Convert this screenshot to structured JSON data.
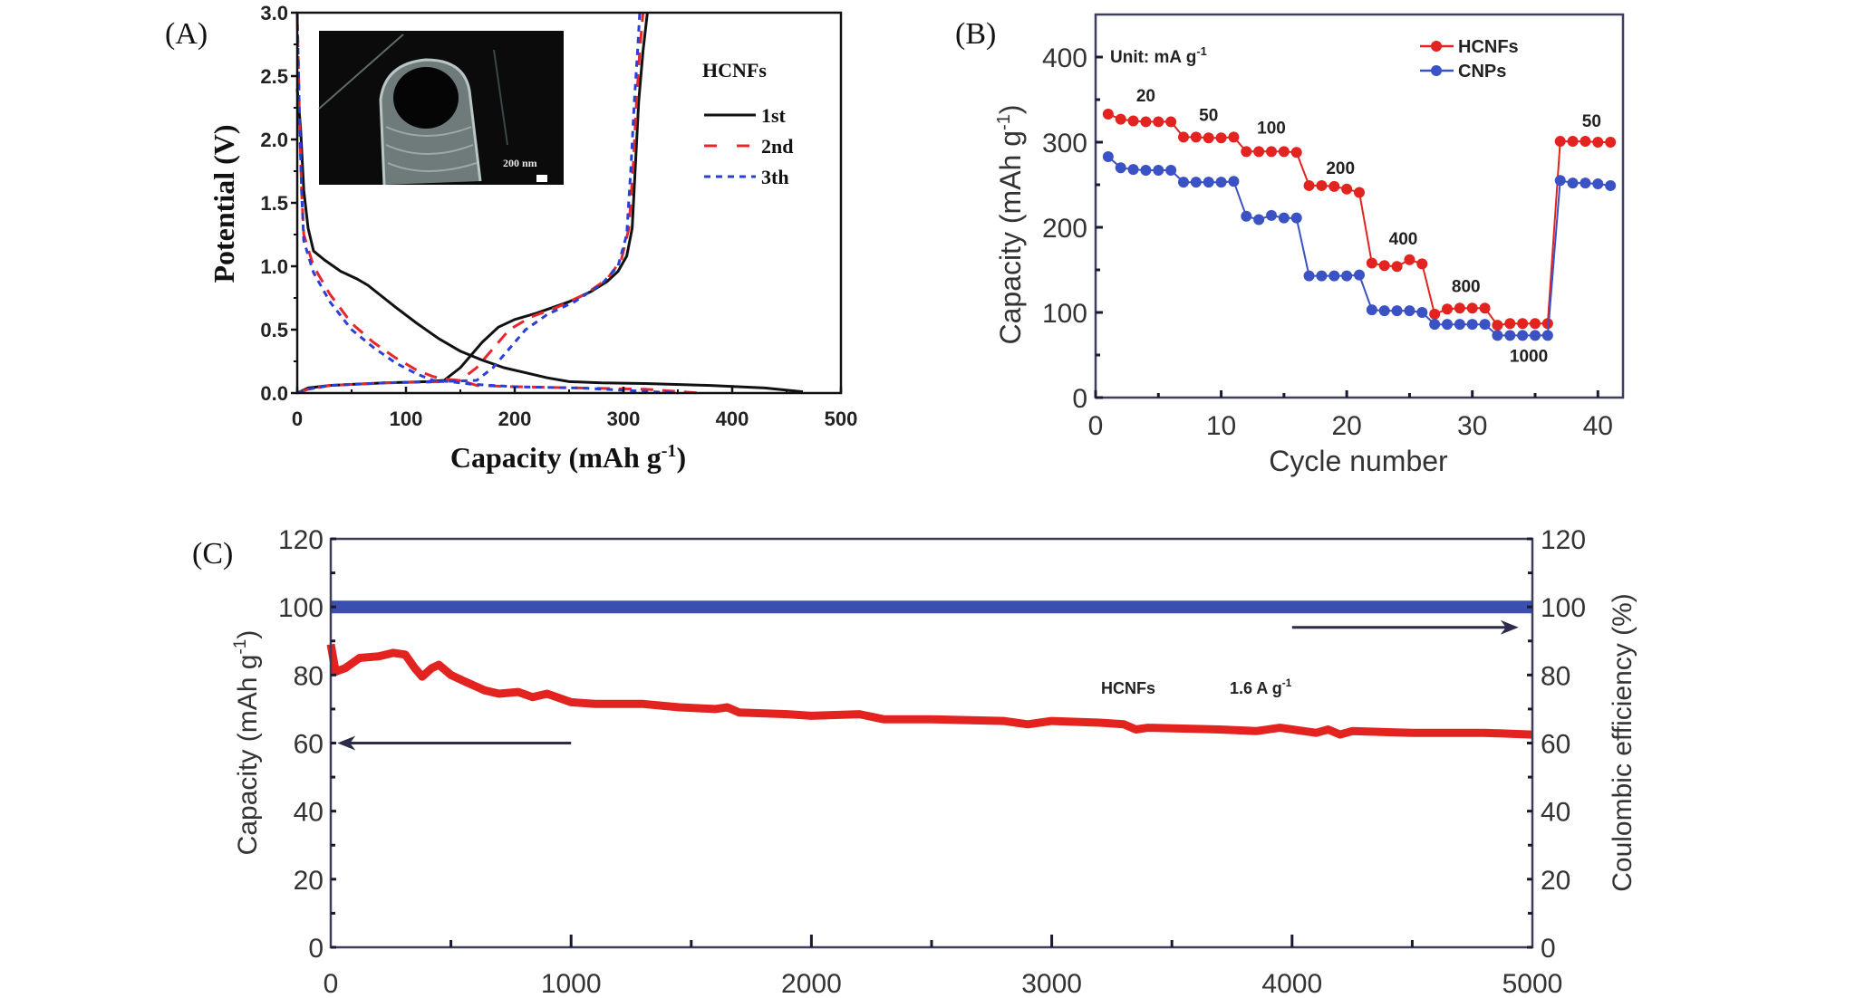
{
  "figure": {
    "panel_labels": [
      "(A)",
      "(B)",
      "(C)"
    ]
  },
  "chart_data": [
    {
      "id": "A",
      "type": "line",
      "title": "",
      "xlabel": "Capacity (mAh g-1)",
      "xlabel_main": "Capacity (mAh g",
      "xlabel_sup": "-1",
      "xlabel_end": ")",
      "ylabel": "Potential (V)",
      "xlim": [
        0,
        500
      ],
      "ylim": [
        0,
        3.0
      ],
      "xticks": [
        0,
        100,
        200,
        300,
        400,
        500
      ],
      "xtick_labels": [
        "0",
        "100",
        "200",
        "300",
        "400",
        "500"
      ],
      "yticks": [
        0,
        0.5,
        1.0,
        1.5,
        2.0,
        2.5,
        3.0
      ],
      "ytick_labels": [
        "0.0",
        "0.5",
        "1.0",
        "1.5",
        "2.0",
        "2.5",
        "3.0"
      ],
      "grid": false,
      "legend_title": "HCNFs",
      "legend_position": "top-right",
      "inset": {
        "description": "SEM image of hollow carbon nanofiber",
        "scale_bar": "200 nm"
      },
      "series": [
        {
          "name": "1st",
          "color": "#111111",
          "style": "solid",
          "discharge": [
            [
              0,
              2.4
            ],
            [
              3,
              2.1
            ],
            [
              6,
              1.6
            ],
            [
              10,
              1.3
            ],
            [
              15,
              1.12
            ],
            [
              25,
              1.05
            ],
            [
              40,
              0.96
            ],
            [
              55,
              0.9
            ],
            [
              65,
              0.85
            ],
            [
              90,
              0.68
            ],
            [
              110,
              0.55
            ],
            [
              130,
              0.43
            ],
            [
              150,
              0.33
            ],
            [
              170,
              0.26
            ],
            [
              190,
              0.2
            ],
            [
              210,
              0.16
            ],
            [
              230,
              0.12
            ],
            [
              250,
              0.09
            ],
            [
              280,
              0.08
            ],
            [
              320,
              0.075
            ],
            [
              380,
              0.06
            ],
            [
              430,
              0.04
            ],
            [
              465,
              0.01
            ]
          ],
          "charge": [
            [
              0,
              0.0
            ],
            [
              10,
              0.04
            ],
            [
              30,
              0.06
            ],
            [
              80,
              0.08
            ],
            [
              120,
              0.09
            ],
            [
              135,
              0.1
            ],
            [
              150,
              0.2
            ],
            [
              170,
              0.4
            ],
            [
              185,
              0.52
            ],
            [
              200,
              0.58
            ],
            [
              220,
              0.63
            ],
            [
              250,
              0.72
            ],
            [
              270,
              0.8
            ],
            [
              285,
              0.88
            ],
            [
              295,
              0.96
            ],
            [
              303,
              1.08
            ],
            [
              308,
              1.3
            ],
            [
              311,
              1.8
            ],
            [
              314,
              2.3
            ],
            [
              318,
              2.7
            ],
            [
              322,
              3.0
            ]
          ]
        },
        {
          "name": "2nd",
          "color": "#e8262c",
          "style": "dashed",
          "discharge": [
            [
              0,
              3.0
            ],
            [
              2,
              2.2
            ],
            [
              4,
              1.6
            ],
            [
              6,
              1.25
            ],
            [
              15,
              1.0
            ],
            [
              30,
              0.78
            ],
            [
              50,
              0.55
            ],
            [
              70,
              0.4
            ],
            [
              90,
              0.28
            ],
            [
              110,
              0.18
            ],
            [
              125,
              0.13
            ],
            [
              135,
              0.11
            ],
            [
              150,
              0.1
            ],
            [
              165,
              0.06
            ],
            [
              200,
              0.05
            ],
            [
              260,
              0.04
            ],
            [
              320,
              0.03
            ],
            [
              370,
              0.0
            ]
          ],
          "charge": [
            [
              0,
              0.0
            ],
            [
              10,
              0.03
            ],
            [
              30,
              0.06
            ],
            [
              80,
              0.08
            ],
            [
              130,
              0.09
            ],
            [
              150,
              0.1
            ],
            [
              165,
              0.2
            ],
            [
              180,
              0.35
            ],
            [
              195,
              0.5
            ],
            [
              215,
              0.6
            ],
            [
              240,
              0.68
            ],
            [
              265,
              0.78
            ],
            [
              285,
              0.9
            ],
            [
              298,
              1.05
            ],
            [
              305,
              1.3
            ],
            [
              309,
              1.8
            ],
            [
              312,
              2.3
            ],
            [
              315,
              2.7
            ],
            [
              318,
              3.0
            ]
          ]
        },
        {
          "name": "3th",
          "color": "#2a3fd6",
          "style": "dotted",
          "discharge": [
            [
              0,
              3.0
            ],
            [
              2,
              2.2
            ],
            [
              4,
              1.6
            ],
            [
              6,
              1.2
            ],
            [
              15,
              0.95
            ],
            [
              30,
              0.72
            ],
            [
              50,
              0.5
            ],
            [
              70,
              0.36
            ],
            [
              90,
              0.24
            ],
            [
              110,
              0.15
            ],
            [
              125,
              0.1
            ],
            [
              140,
              0.09
            ],
            [
              160,
              0.07
            ],
            [
              200,
              0.05
            ],
            [
              260,
              0.04
            ],
            [
              350,
              0.0
            ]
          ],
          "charge": [
            [
              0,
              0.0
            ],
            [
              10,
              0.03
            ],
            [
              30,
              0.06
            ],
            [
              80,
              0.08
            ],
            [
              130,
              0.09
            ],
            [
              165,
              0.1
            ],
            [
              180,
              0.2
            ],
            [
              195,
              0.35
            ],
            [
              210,
              0.5
            ],
            [
              230,
              0.62
            ],
            [
              255,
              0.72
            ],
            [
              280,
              0.86
            ],
            [
              295,
              1.0
            ],
            [
              303,
              1.25
            ],
            [
              307,
              1.8
            ],
            [
              310,
              2.3
            ],
            [
              313,
              2.7
            ],
            [
              315,
              3.0
            ]
          ]
        }
      ]
    },
    {
      "id": "B",
      "type": "line",
      "title": "",
      "xlabel": "Cycle number",
      "ylabel": "Capacity (mAh g-1)",
      "ylabel_main": "Capacity (mAh g",
      "ylabel_sup": "-1",
      "ylabel_end": ")",
      "xlim": [
        0,
        42
      ],
      "ylim": [
        0,
        450
      ],
      "xticks": [
        0,
        10,
        20,
        30,
        40
      ],
      "xtick_labels": [
        "0",
        "10",
        "20",
        "30",
        "40"
      ],
      "yticks": [
        0,
        100,
        200,
        300,
        400
      ],
      "ytick_labels": [
        "0",
        "100",
        "200",
        "300",
        "400"
      ],
      "grid": false,
      "legend_position": "top-right",
      "unit_note": "Unit: mA g",
      "unit_note_sup": "-1",
      "rate_annotations": [
        {
          "text": "20",
          "x": 4,
          "y": 348
        },
        {
          "text": "50",
          "x": 9,
          "y": 325
        },
        {
          "text": "100",
          "x": 14,
          "y": 310
        },
        {
          "text": "200",
          "x": 19.5,
          "y": 263
        },
        {
          "text": "400",
          "x": 24.5,
          "y": 180
        },
        {
          "text": "800",
          "x": 29.5,
          "y": 124
        },
        {
          "text": "1000",
          "x": 34.5,
          "y": 42
        },
        {
          "text": "50",
          "x": 39.5,
          "y": 318
        }
      ],
      "x": [
        1,
        2,
        3,
        4,
        5,
        6,
        7,
        8,
        9,
        10,
        11,
        12,
        13,
        14,
        15,
        16,
        17,
        18,
        19,
        20,
        21,
        22,
        23,
        24,
        25,
        26,
        27,
        28,
        29,
        30,
        31,
        32,
        33,
        34,
        35,
        36,
        37,
        38,
        39,
        40,
        41
      ],
      "series": [
        {
          "name": "HCNFs",
          "color": "#e3231f",
          "values": [
            333,
            327,
            325,
            324,
            324,
            324,
            306,
            306,
            305,
            305,
            306,
            289,
            289,
            289,
            289,
            288,
            249,
            249,
            248,
            245,
            241,
            158,
            155,
            154,
            162,
            157,
            98,
            104,
            105,
            105,
            105,
            85,
            87,
            87,
            87,
            87,
            301,
            301,
            301,
            300,
            300
          ]
        },
        {
          "name": "CNPs",
          "color": "#3a52c4",
          "values": [
            283,
            270,
            268,
            267,
            267,
            267,
            253,
            253,
            253,
            253,
            254,
            213,
            209,
            214,
            211,
            211,
            143,
            143,
            143,
            143,
            144,
            103,
            102,
            102,
            102,
            100,
            86,
            86,
            86,
            86,
            86,
            73,
            73,
            73,
            73,
            73,
            255,
            252,
            252,
            251,
            249
          ]
        }
      ]
    },
    {
      "id": "C",
      "type": "line",
      "title": "",
      "xlabel": "",
      "ylabel_left": "Capacity (mAh g-1)",
      "ylabel_left_main": "Capacity (mAh g",
      "ylabel_left_sup": "-1",
      "ylabel_left_end": ")",
      "ylabel_right": "Coulombic efficiency (%)",
      "xlim": [
        0,
        5000
      ],
      "ylim_left": [
        0,
        120
      ],
      "ylim_right": [
        0,
        120
      ],
      "xticks": [
        0,
        1000,
        2000,
        3000,
        4000,
        5000
      ],
      "xtick_labels": [
        "0",
        "1000",
        "2000",
        "3000",
        "4000",
        "5000"
      ],
      "yticks": [
        0,
        20,
        40,
        60,
        80,
        100,
        120
      ],
      "ytick_labels": [
        "0",
        "20",
        "40",
        "60",
        "80",
        "100",
        "120"
      ],
      "grid": false,
      "annotation": {
        "sample": "HCNFs",
        "rate": "1.6 A g",
        "rate_sup": "-1"
      },
      "arrows": [
        {
          "direction": "left",
          "points_to": "left axis",
          "y": 60,
          "x_from": 1000,
          "x_to": 50
        },
        {
          "direction": "right",
          "points_to": "right axis",
          "y": 94,
          "x_from": 4000,
          "x_to": 4920
        }
      ],
      "series": [
        {
          "name": "Capacity",
          "axis": "left",
          "color": "#e3231f",
          "points": [
            [
              0,
              89
            ],
            [
              20,
              81
            ],
            [
              60,
              82
            ],
            [
              120,
              85
            ],
            [
              200,
              85.5
            ],
            [
              260,
              86.5
            ],
            [
              310,
              86
            ],
            [
              350,
              82
            ],
            [
              380,
              79.5
            ],
            [
              420,
              82
            ],
            [
              450,
              83
            ],
            [
              500,
              80
            ],
            [
              560,
              78
            ],
            [
              640,
              75.5
            ],
            [
              700,
              74.5
            ],
            [
              780,
              75
            ],
            [
              840,
              73.5
            ],
            [
              900,
              74.5
            ],
            [
              960,
              73
            ],
            [
              1000,
              72
            ],
            [
              1100,
              71.5
            ],
            [
              1300,
              71.5
            ],
            [
              1450,
              70.5
            ],
            [
              1600,
              70
            ],
            [
              1650,
              70.5
            ],
            [
              1700,
              69
            ],
            [
              1900,
              68.5
            ],
            [
              2000,
              68
            ],
            [
              2200,
              68.5
            ],
            [
              2300,
              67
            ],
            [
              2500,
              67
            ],
            [
              2800,
              66.5
            ],
            [
              2900,
              65.5
            ],
            [
              3000,
              66.5
            ],
            [
              3200,
              66
            ],
            [
              3300,
              65.5
            ],
            [
              3350,
              64
            ],
            [
              3400,
              64.5
            ],
            [
              3700,
              64
            ],
            [
              3850,
              63.5
            ],
            [
              3950,
              64.5
            ],
            [
              4100,
              63
            ],
            [
              4150,
              64
            ],
            [
              4200,
              62.5
            ],
            [
              4250,
              63.5
            ],
            [
              4500,
              63
            ],
            [
              4800,
              63
            ],
            [
              5000,
              62.5
            ]
          ]
        },
        {
          "name": "Coulombic efficiency",
          "axis": "right",
          "color": "#3a4fb0",
          "points": [
            [
              0,
              100
            ],
            [
              5000,
              100
            ]
          ]
        }
      ]
    }
  ]
}
